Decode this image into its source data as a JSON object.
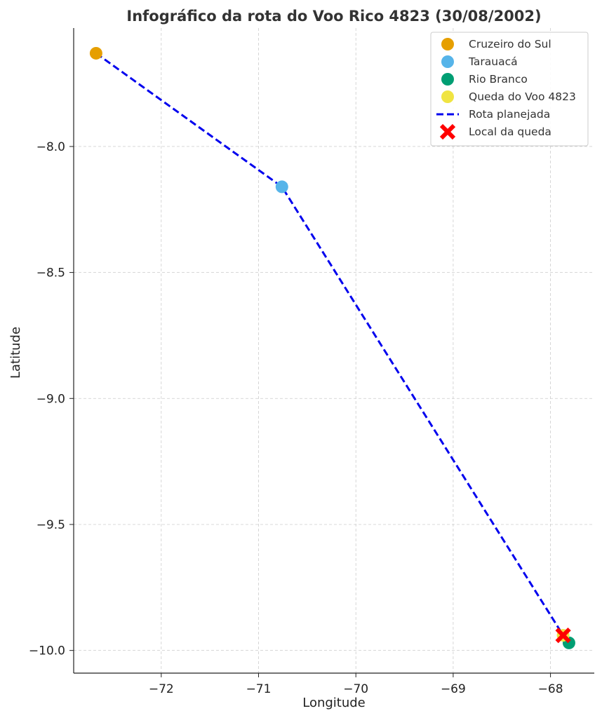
{
  "chart_data": {
    "type": "scatter",
    "title": "Infográfico da rota do Voo Rico 4823 (30/08/2002)",
    "xlabel": "Longitude",
    "ylabel": "Latitude",
    "xlim": [
      -72.9,
      -67.55
    ],
    "ylim": [
      -10.09,
      -7.53
    ],
    "xticks": [
      -72,
      -71,
      -70,
      -69,
      -68
    ],
    "yticks": [
      -8.0,
      -8.5,
      -9.0,
      -9.5,
      -10.0
    ],
    "xtick_labels": [
      "−72",
      "−71",
      "−70",
      "−69",
      "−68"
    ],
    "ytick_labels": [
      "−8.0",
      "−8.5",
      "−9.0",
      "−9.5",
      "−10.0"
    ],
    "grid": true,
    "legend_position": "top-right",
    "points": [
      {
        "name": "Cruzeiro do Sul",
        "x": -72.67,
        "y": -7.63,
        "color": "#E69F00"
      },
      {
        "name": "Tarauacá",
        "x": -70.76,
        "y": -8.16,
        "color": "#56B4E9"
      },
      {
        "name": "Rio Branco",
        "x": -67.81,
        "y": -9.97,
        "color": "#009E73"
      },
      {
        "name": "Queda do Voo 4823",
        "x": -67.87,
        "y": -9.94,
        "color": "#F0E442"
      }
    ],
    "route": {
      "name": "Rota planejada",
      "color": "#0000EE",
      "x": [
        -72.67,
        -70.76,
        -67.87
      ],
      "y": [
        -7.63,
        -8.16,
        -9.94
      ]
    },
    "crash_marker": {
      "name": "Local da queda",
      "x": -67.87,
      "y": -9.94,
      "color": "#FF0000"
    },
    "legend": [
      {
        "label": "Cruzeiro do Sul",
        "kind": "point",
        "color": "#E69F00"
      },
      {
        "label": "Tarauacá",
        "kind": "point",
        "color": "#56B4E9"
      },
      {
        "label": "Rio Branco",
        "kind": "point",
        "color": "#009E73"
      },
      {
        "label": "Queda do Voo 4823",
        "kind": "point",
        "color": "#F0E442"
      },
      {
        "label": "Rota planejada",
        "kind": "line",
        "color": "#0000EE"
      },
      {
        "label": "Local da queda",
        "kind": "cross",
        "color": "#FF0000"
      }
    ]
  }
}
